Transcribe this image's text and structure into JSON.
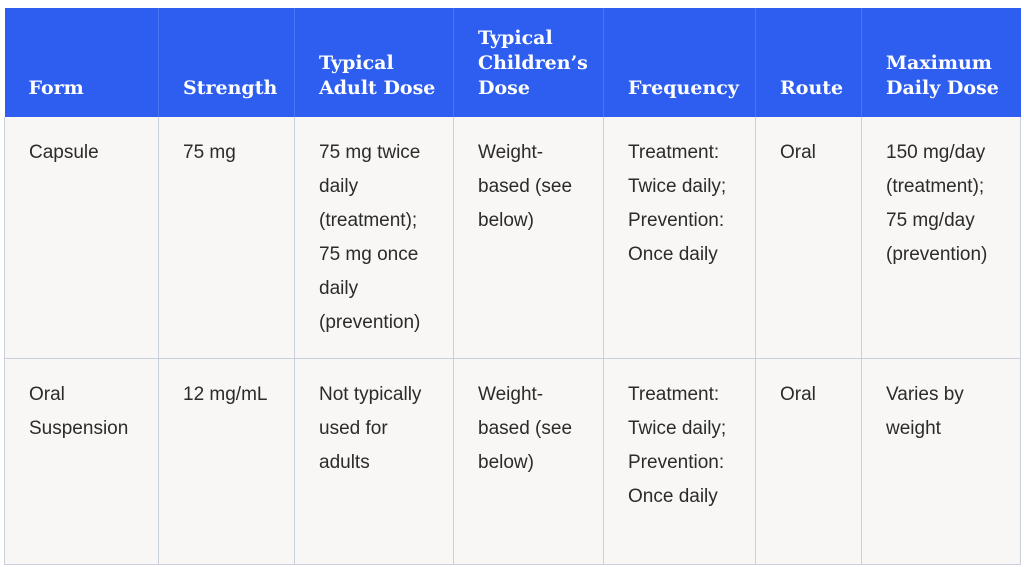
{
  "headers": [
    "Form",
    "Strength",
    "Typical Adult Dose",
    "Typical Children’s Dose",
    "Frequency",
    "Route",
    "Maximum Daily Dose"
  ],
  "rows": [
    {
      "form": "Capsule",
      "strength": "75 mg",
      "adult_dose": "75 mg twice daily (treatment); 75 mg once daily (prevention)",
      "children_dose": "Weight-based (see below)",
      "frequency": "Treatment: Twice daily; Prevention: Once daily",
      "route": "Oral",
      "max_daily_dose": "150 mg/day (treatment); 75 mg/day (prevention)"
    },
    {
      "form": "Oral Suspension",
      "strength": "12 mg/mL",
      "adult_dose": "Not typically used for adults",
      "children_dose": "Weight-based (see below)",
      "frequency": "Treatment: Twice daily; Prevention: Once daily",
      "route": "Oral",
      "max_daily_dose": "Varies by weight"
    }
  ],
  "colors": {
    "header_background": "#2d5ef0",
    "header_text": "#ffffff",
    "body_background": "#f8f7f5",
    "body_text": "#2b2b2b",
    "grid_line": "#c9cfdb"
  }
}
